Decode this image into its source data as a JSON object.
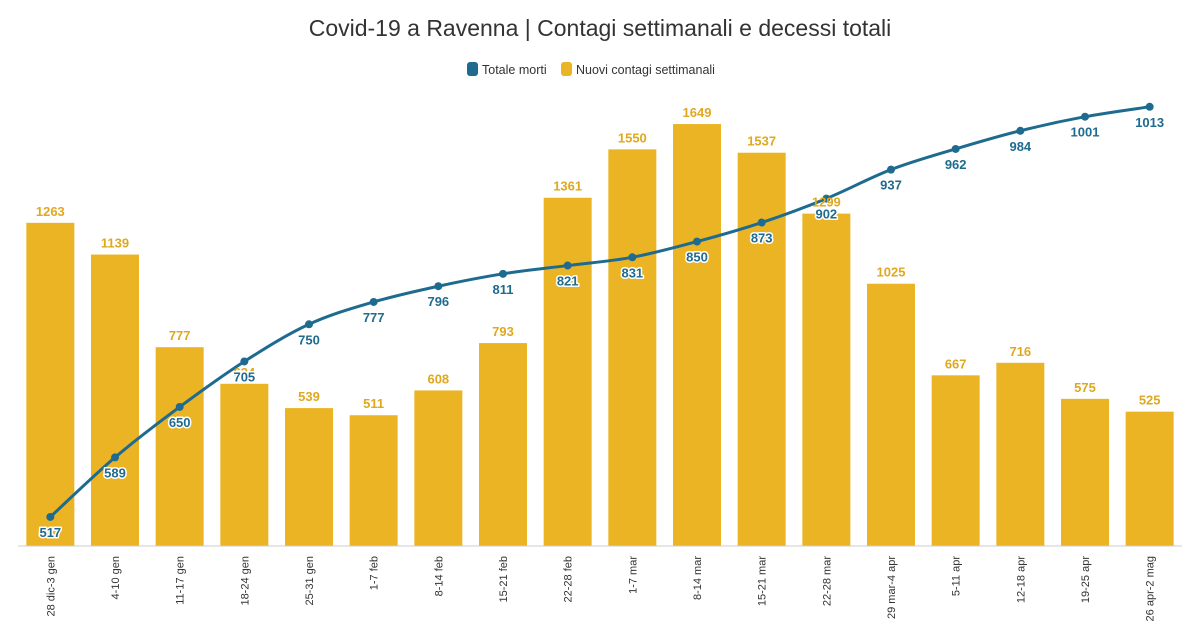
{
  "chart_data": {
    "type": "bar",
    "title": "Covid-19 a Ravenna | Contagi settimanali e decessi totali",
    "categories": [
      "28 dic-3 gen",
      "4-10 gen",
      "11-17 gen",
      "18-24 gen",
      "25-31 gen",
      "1-7 feb",
      "8-14 feb",
      "15-21 feb",
      "22-28 feb",
      "1-7 mar",
      "8-14 mar",
      "15-21 mar",
      "22-28 mar",
      "29 mar-4 apr",
      "5-11 apr",
      "12-18 apr",
      "19-25 apr",
      "26 apr-2 mag"
    ],
    "series": [
      {
        "name": "Totale morti",
        "type": "line",
        "color": "#1f6b8f",
        "values": [
          517,
          589,
          650,
          705,
          750,
          777,
          796,
          811,
          821,
          831,
          850,
          873,
          902,
          937,
          962,
          984,
          1001,
          1013
        ],
        "ylim": [
          500,
          1020
        ]
      },
      {
        "name": "Nuovi contagi settimanali",
        "type": "bar",
        "color": "#ebb424",
        "values": [
          1263,
          1139,
          777,
          634,
          539,
          511,
          608,
          793,
          1361,
          1550,
          1649,
          1537,
          1299,
          1025,
          667,
          716,
          575,
          525
        ],
        "ylim": [
          0,
          1700
        ]
      }
    ],
    "legend_position": "top-center",
    "grid": false
  }
}
